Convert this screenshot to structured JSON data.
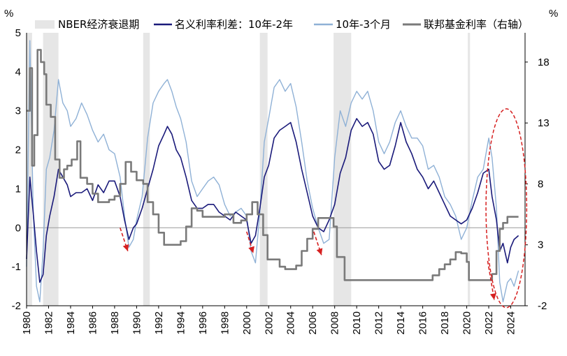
{
  "chart_data": {
    "type": "line",
    "left_unit": "%",
    "right_unit": "%",
    "left_axis": {
      "min": -2,
      "max": 5,
      "ticks": [
        5,
        4,
        3,
        2,
        1,
        0,
        -1,
        -2
      ]
    },
    "right_axis": {
      "min": -2,
      "max": 20.4,
      "ticks": [
        18,
        13,
        8,
        3,
        -2
      ]
    },
    "x_axis": {
      "min": 1980,
      "max": 2025.3,
      "ticks": [
        1980,
        1982,
        1984,
        1986,
        1988,
        1990,
        1992,
        1994,
        1996,
        1998,
        2000,
        2002,
        2004,
        2006,
        2008,
        2010,
        2012,
        2014,
        2016,
        2018,
        2020,
        2022,
        2024
      ]
    },
    "legend": [
      {
        "key": "recession",
        "label": "NBER经济衰退期",
        "color": "#e6e6e6"
      },
      {
        "key": "spread_10y2y",
        "label": "名义利率利差：10年-2年",
        "color": "#1a1a7a"
      },
      {
        "key": "spread_10y3m",
        "label": "10年-3个月",
        "color": "#8fb1d6"
      },
      {
        "key": "fed_funds",
        "label": "联邦基金利率（右轴）",
        "color": "#7a7a7a"
      }
    ],
    "recessions": [
      [
        1980.0,
        1980.5
      ],
      [
        1981.5,
        1982.9
      ],
      [
        1990.6,
        1991.2
      ],
      [
        2001.2,
        2001.9
      ],
      [
        2007.9,
        2009.5
      ],
      [
        2020.1,
        2020.3
      ]
    ],
    "series": [
      {
        "key": "spread_10y2y",
        "x": [
          1980.0,
          1980.3,
          1980.6,
          1980.9,
          1981.2,
          1981.5,
          1981.8,
          1982.1,
          1982.5,
          1982.9,
          1983.3,
          1983.7,
          1984.0,
          1984.5,
          1985.0,
          1985.5,
          1986.0,
          1986.5,
          1987.0,
          1987.5,
          1988.0,
          1988.5,
          1988.9,
          1989.3,
          1989.7,
          1990.0,
          1990.5,
          1991.0,
          1991.5,
          1992.0,
          1992.5,
          1992.8,
          1993.2,
          1993.6,
          1994.0,
          1994.5,
          1995.0,
          1995.5,
          1996.0,
          1996.5,
          1997.0,
          1997.5,
          1998.0,
          1998.5,
          1999.0,
          1999.5,
          2000.0,
          2000.4,
          2000.8,
          2001.2,
          2001.6,
          2002.0,
          2002.5,
          2003.0,
          2003.5,
          2004.0,
          2004.5,
          2005.0,
          2005.5,
          2006.0,
          2006.5,
          2007.0,
          2007.5,
          2008.0,
          2008.5,
          2009.0,
          2009.5,
          2010.0,
          2010.5,
          2011.0,
          2011.5,
          2012.0,
          2012.5,
          2013.0,
          2013.5,
          2014.0,
          2014.5,
          2015.0,
          2015.5,
          2016.0,
          2016.5,
          2017.0,
          2017.5,
          2018.0,
          2018.5,
          2019.0,
          2019.5,
          2020.0,
          2020.5,
          2021.0,
          2021.5,
          2022.0,
          2022.3,
          2022.7,
          2023.0,
          2023.3,
          2023.7,
          2024.0,
          2024.3,
          2024.7
        ],
        "values": [
          -0.8,
          1.3,
          0.4,
          -0.6,
          -1.4,
          -1.2,
          -0.2,
          0.3,
          0.8,
          1.5,
          1.3,
          1.1,
          0.8,
          0.9,
          0.9,
          1.0,
          0.7,
          1.1,
          0.9,
          1.2,
          1.2,
          0.8,
          0.2,
          -0.3,
          0.0,
          0.1,
          0.5,
          1.0,
          1.5,
          2.1,
          2.4,
          2.6,
          2.4,
          2.0,
          1.8,
          1.3,
          0.7,
          0.5,
          0.5,
          0.6,
          0.6,
          0.4,
          0.3,
          0.2,
          0.4,
          0.3,
          0.2,
          -0.4,
          -0.2,
          0.5,
          1.3,
          1.6,
          2.3,
          2.5,
          2.6,
          2.7,
          2.2,
          1.5,
          0.9,
          0.3,
          0.0,
          -0.1,
          0.2,
          0.6,
          1.4,
          1.8,
          2.5,
          2.8,
          2.6,
          2.7,
          2.4,
          1.7,
          1.5,
          1.6,
          2.1,
          2.7,
          2.2,
          1.9,
          1.5,
          1.3,
          1.0,
          1.2,
          0.9,
          0.6,
          0.3,
          0.2,
          0.1,
          0.2,
          0.5,
          0.9,
          1.4,
          1.5,
          0.8,
          0.2,
          -0.6,
          -0.4,
          -0.9,
          -0.5,
          -0.3,
          -0.2
        ]
      },
      {
        "key": "spread_10y3m",
        "x": [
          1980.0,
          1980.3,
          1980.6,
          1980.9,
          1981.2,
          1981.5,
          1981.8,
          1982.1,
          1982.5,
          1982.9,
          1983.3,
          1983.7,
          1984.0,
          1984.5,
          1985.0,
          1985.5,
          1986.0,
          1986.5,
          1987.0,
          1987.5,
          1988.0,
          1988.5,
          1988.9,
          1989.3,
          1989.7,
          1990.0,
          1990.5,
          1991.0,
          1991.5,
          1992.0,
          1992.5,
          1992.8,
          1993.2,
          1993.6,
          1994.0,
          1994.5,
          1995.0,
          1995.5,
          1996.0,
          1996.5,
          1997.0,
          1997.5,
          1998.0,
          1998.5,
          1999.0,
          1999.5,
          2000.0,
          2000.4,
          2000.8,
          2001.2,
          2001.6,
          2002.0,
          2002.5,
          2003.0,
          2003.5,
          2004.0,
          2004.5,
          2005.0,
          2005.5,
          2006.0,
          2006.5,
          2007.0,
          2007.5,
          2008.0,
          2008.5,
          2009.0,
          2009.5,
          2010.0,
          2010.5,
          2011.0,
          2011.5,
          2012.0,
          2012.5,
          2013.0,
          2013.5,
          2014.0,
          2014.5,
          2015.0,
          2015.5,
          2016.0,
          2016.5,
          2017.0,
          2017.5,
          2018.0,
          2018.5,
          2019.0,
          2019.5,
          2020.0,
          2020.5,
          2021.0,
          2021.5,
          2022.0,
          2022.3,
          2022.7,
          2023.0,
          2023.3,
          2023.7,
          2024.0,
          2024.3,
          2024.7
        ],
        "values": [
          -1.0,
          4.8,
          0.5,
          -1.5,
          -1.9,
          -0.6,
          1.5,
          1.8,
          2.5,
          3.8,
          3.2,
          3.0,
          2.6,
          2.8,
          3.2,
          2.9,
          2.5,
          2.2,
          2.4,
          2.0,
          1.9,
          1.3,
          0.3,
          -0.5,
          -0.3,
          0.2,
          0.8,
          2.3,
          3.2,
          3.5,
          3.7,
          3.8,
          3.5,
          3.1,
          2.8,
          2.2,
          1.2,
          0.8,
          1.0,
          1.2,
          1.3,
          1.1,
          0.6,
          0.3,
          0.4,
          0.5,
          0.3,
          -0.6,
          -0.9,
          0.4,
          2.2,
          2.8,
          3.6,
          3.8,
          3.5,
          3.7,
          3.1,
          2.2,
          1.2,
          0.5,
          0.0,
          -0.4,
          -0.3,
          1.8,
          3.0,
          2.6,
          3.2,
          3.5,
          3.3,
          3.5,
          3.0,
          2.2,
          1.9,
          2.2,
          2.7,
          3.0,
          2.6,
          2.3,
          2.3,
          2.1,
          1.5,
          1.6,
          1.3,
          0.8,
          0.6,
          0.3,
          -0.3,
          0.0,
          0.7,
          1.3,
          1.5,
          2.3,
          1.8,
          0.5,
          -1.4,
          -1.9,
          -1.4,
          -1.3,
          -1.5,
          -1.1
        ]
      },
      {
        "key": "fed_funds",
        "x": [
          1980.0,
          1980.3,
          1980.5,
          1980.7,
          1981.0,
          1981.3,
          1981.6,
          1981.8,
          1982.2,
          1982.6,
          1983.0,
          1983.4,
          1983.7,
          1984.1,
          1984.6,
          1984.9,
          1985.5,
          1986.0,
          1986.5,
          1987.0,
          1987.5,
          1988.0,
          1988.5,
          1989.0,
          1989.5,
          1990.0,
          1990.6,
          1991.0,
          1991.5,
          1992.0,
          1992.5,
          1993.5,
          1994.0,
          1994.5,
          1995.0,
          1995.5,
          1996.0,
          1998.0,
          1998.8,
          1999.5,
          2000.0,
          2000.5,
          2001.0,
          2001.5,
          2001.9,
          2003.0,
          2003.5,
          2004.5,
          2005.0,
          2005.5,
          2006.0,
          2006.5,
          2007.5,
          2007.9,
          2008.2,
          2008.9,
          2015.9,
          2016.9,
          2017.5,
          2018.0,
          2018.5,
          2019.0,
          2019.5,
          2020.0,
          2020.2,
          2022.0,
          2022.3,
          2022.7,
          2023.0,
          2023.3,
          2023.7,
          2024.5,
          2024.7
        ],
        "values": [
          14.0,
          17.5,
          9.5,
          12.0,
          19.0,
          18.0,
          17.0,
          14.5,
          13.5,
          10.0,
          8.5,
          9.2,
          9.5,
          10.0,
          11.5,
          8.5,
          8.0,
          7.2,
          6.5,
          6.5,
          6.7,
          7.0,
          8.0,
          9.8,
          9.0,
          8.3,
          8.0,
          6.5,
          5.5,
          4.0,
          3.0,
          3.0,
          3.3,
          4.5,
          6.0,
          5.8,
          5.3,
          5.5,
          4.8,
          5.0,
          5.5,
          6.5,
          5.5,
          3.8,
          1.8,
          1.2,
          1.0,
          1.3,
          2.5,
          3.5,
          4.3,
          5.2,
          5.2,
          4.5,
          2.0,
          0.1,
          0.1,
          0.5,
          1.0,
          1.4,
          1.8,
          2.4,
          2.3,
          1.6,
          0.1,
          0.1,
          0.6,
          2.5,
          4.3,
          4.8,
          5.3,
          5.3,
          5.3
        ]
      }
    ],
    "annotations": {
      "arrows": [
        [
          1988.5,
          0.0,
          1989.2,
          -0.6
        ],
        [
          2000.0,
          -0.1,
          2000.6,
          -0.65
        ],
        [
          2006.1,
          -0.1,
          2006.8,
          -0.7
        ],
        [
          2021.9,
          -0.85,
          2022.5,
          -1.85
        ]
      ],
      "ellipse": {
        "cx": 2023.6,
        "cy": 0.5,
        "rx": 1.85,
        "ry": 2.55
      },
      "color": "#d62020"
    }
  }
}
